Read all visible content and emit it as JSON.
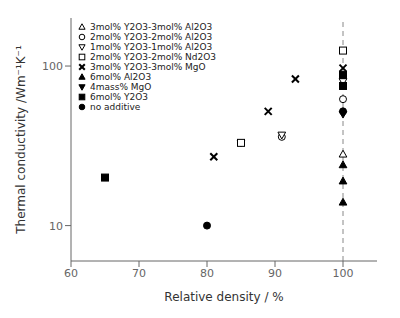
{
  "chart_data": {
    "type": "scatter",
    "xlabel": "Relative density / %",
    "ylabel": "Thermal conductivity /Wm⁻¹K⁻¹",
    "xlim": [
      60,
      105
    ],
    "ylim": [
      6,
      200
    ],
    "xticks": [
      60,
      70,
      80,
      90,
      100
    ],
    "yticks": [
      10,
      100
    ],
    "log": "y",
    "grid": false,
    "legend": "upper left",
    "reference_lines": [
      {
        "x": 100,
        "line_style": "dashed"
      }
    ],
    "series": [
      {
        "name": "3mol% Y2O3-3mol% Al2O3",
        "marker": "triangle-up-open",
        "color": "black",
        "points": [
          [
            100,
            28
          ]
        ]
      },
      {
        "name": "2mol% Y2O3-2mol% Al2O3",
        "marker": "circle-open",
        "color": "black",
        "points": [
          [
            91,
            36
          ],
          [
            100,
            62
          ]
        ]
      },
      {
        "name": "1mol% Y2O3-1mol% Al2O3",
        "marker": "triangle-down-open",
        "color": "black",
        "points": [
          [
            85,
            33
          ],
          [
            91,
            37
          ],
          [
            100,
            80
          ]
        ]
      },
      {
        "name": "2mol% Y2O3-2mol% Nd2O3",
        "marker": "square-open",
        "color": "black",
        "points": [
          [
            85,
            33
          ],
          [
            100,
            125
          ]
        ]
      },
      {
        "name": "3mol% Y2O3-3mol% MgO",
        "marker": "cross",
        "color": "black",
        "points": [
          [
            81,
            27
          ],
          [
            89,
            52
          ],
          [
            93,
            83
          ],
          [
            100,
            97
          ]
        ]
      },
      {
        "name": "6mol% Al2O3",
        "marker": "triangle-up",
        "color": "black",
        "points": [
          [
            100,
            14
          ],
          [
            100,
            19
          ],
          [
            100,
            24
          ]
        ]
      },
      {
        "name": "4mass% MgO",
        "marker": "triangle-down",
        "color": "black",
        "points": [
          [
            100,
            50
          ]
        ]
      },
      {
        "name": "6mol% Y2O3",
        "marker": "square",
        "color": "black",
        "points": [
          [
            65,
            20
          ],
          [
            100,
            75
          ],
          [
            100,
            88
          ]
        ]
      },
      {
        "name": "no additive",
        "marker": "circle",
        "color": "black",
        "points": [
          [
            80,
            10
          ],
          [
            100,
            52
          ]
        ]
      }
    ]
  }
}
